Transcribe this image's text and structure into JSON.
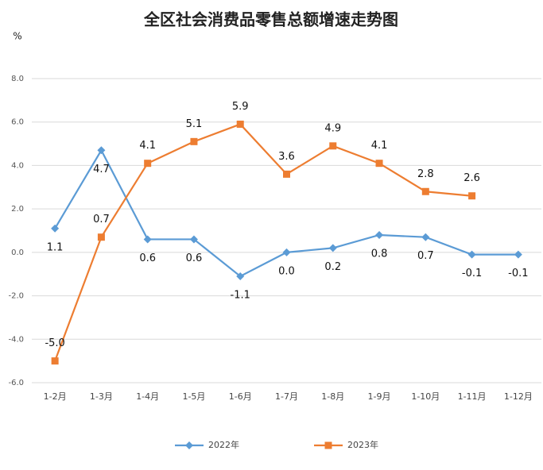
{
  "chart_data": {
    "type": "line",
    "title": "全区社会消费品零售总额增速走势图",
    "y_label": "%",
    "categories": [
      "1-2月",
      "1-3月",
      "1-4月",
      "1-5月",
      "1-6月",
      "1-7月",
      "1-8月",
      "1-9月",
      "1-10月",
      "1-11月",
      "1-12月"
    ],
    "series": [
      {
        "name": "2022年",
        "color": "#5b9bd5",
        "marker": "diamond",
        "values": [
          1.1,
          4.7,
          0.6,
          0.6,
          -1.1,
          0.0,
          0.2,
          0.8,
          0.7,
          -0.1,
          -0.1
        ],
        "value_labels": [
          "1.1",
          "4.7",
          "0.6",
          "0.6",
          "-1.1",
          "0.0",
          "0.2",
          "0.8",
          "0.7",
          "-0.1",
          "-0.1"
        ]
      },
      {
        "name": "2023年",
        "color": "#ed7d31",
        "marker": "square",
        "values": [
          -5.0,
          0.7,
          4.1,
          5.1,
          5.9,
          3.6,
          4.9,
          4.1,
          2.8,
          2.6,
          null
        ],
        "value_labels": [
          "-5.0",
          "0.7",
          "4.1",
          "5.1",
          "5.9",
          "3.6",
          "4.9",
          "4.1",
          "2.8",
          "2.6",
          null
        ]
      }
    ],
    "ylim": [
      -6,
      8
    ],
    "yticks": [
      {
        "value": -6,
        "label": "-6.0"
      },
      {
        "value": -4,
        "label": "-4.0"
      },
      {
        "value": -2,
        "label": "-2.0"
      },
      {
        "value": 0,
        "label": "0.0"
      },
      {
        "value": 2,
        "label": "2.0"
      },
      {
        "value": 4,
        "label": "4.0"
      },
      {
        "value": 6,
        "label": "6.0"
      },
      {
        "value": 8,
        "label": "8.0"
      }
    ],
    "grid": true,
    "legend": "bottom"
  }
}
